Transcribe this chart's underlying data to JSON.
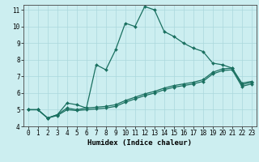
{
  "xlabel": "Humidex (Indice chaleur)",
  "background_color": "#cceef0",
  "grid_color": "#aad8dc",
  "line_color": "#1a7060",
  "xlim": [
    -0.5,
    23.5
  ],
  "ylim": [
    4,
    11.3
  ],
  "yticks": [
    4,
    5,
    6,
    7,
    8,
    9,
    10,
    11
  ],
  "xticks": [
    0,
    1,
    2,
    3,
    4,
    5,
    6,
    7,
    8,
    9,
    10,
    11,
    12,
    13,
    14,
    15,
    16,
    17,
    18,
    19,
    20,
    21,
    22,
    23
  ],
  "series1_x": [
    0,
    1,
    2,
    3,
    4,
    5,
    6,
    7,
    8,
    9,
    10,
    11,
    12,
    13,
    14,
    15,
    16,
    17,
    18,
    19,
    20,
    21,
    22,
    23
  ],
  "series1_y": [
    5.0,
    5.0,
    4.5,
    4.7,
    5.4,
    5.3,
    5.1,
    7.7,
    7.4,
    8.6,
    10.2,
    10.0,
    11.2,
    11.0,
    9.7,
    9.4,
    9.0,
    8.7,
    8.5,
    7.8,
    7.7,
    7.5,
    6.6,
    6.7
  ],
  "series2_x": [
    0,
    1,
    2,
    3,
    4,
    5,
    6,
    7,
    8,
    9,
    10,
    11,
    12,
    13,
    14,
    15,
    16,
    17,
    18,
    19,
    20,
    21,
    22,
    23
  ],
  "series2_y": [
    5.0,
    5.0,
    4.5,
    4.7,
    5.1,
    5.0,
    5.1,
    5.15,
    5.2,
    5.3,
    5.55,
    5.75,
    5.95,
    6.1,
    6.3,
    6.45,
    6.55,
    6.65,
    6.8,
    7.25,
    7.45,
    7.5,
    6.5,
    6.65
  ],
  "series3_x": [
    0,
    1,
    2,
    3,
    4,
    5,
    6,
    7,
    8,
    9,
    10,
    11,
    12,
    13,
    14,
    15,
    16,
    17,
    18,
    19,
    20,
    21,
    22,
    23
  ],
  "series3_y": [
    5.0,
    5.0,
    4.5,
    4.65,
    5.0,
    4.95,
    5.0,
    5.05,
    5.1,
    5.2,
    5.45,
    5.65,
    5.85,
    6.0,
    6.2,
    6.35,
    6.45,
    6.55,
    6.7,
    7.15,
    7.35,
    7.4,
    6.4,
    6.55
  ],
  "marker": "D",
  "markersize": 2.0,
  "linewidth": 0.9,
  "xlabel_fontsize": 6.5,
  "tick_fontsize": 5.5
}
